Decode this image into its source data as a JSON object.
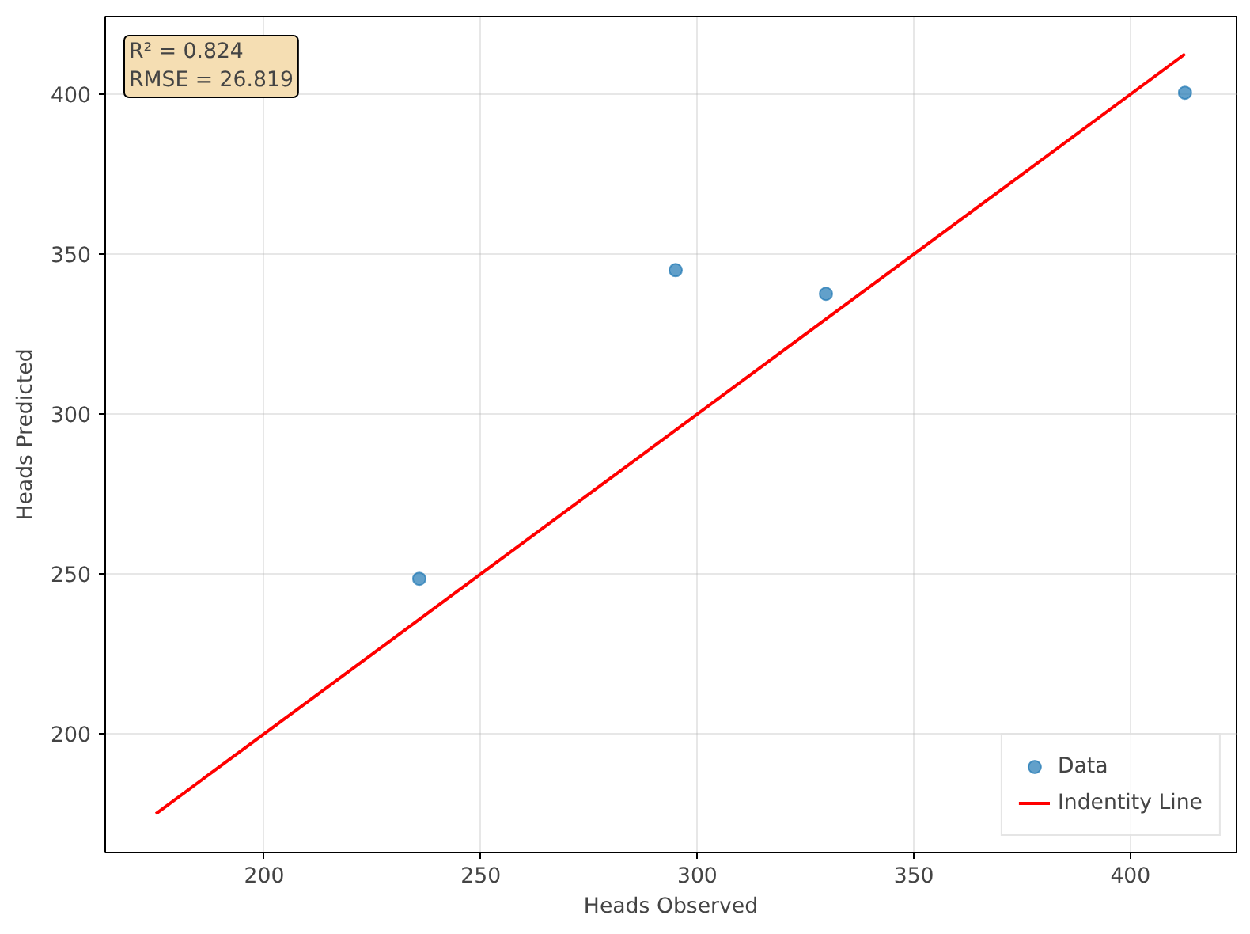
{
  "chart_data": {
    "type": "scatter",
    "xlabel": "Heads Observed",
    "ylabel": "Heads Predicted",
    "annotations": [
      "R² = 0.824\nRMSE = 26.819"
    ],
    "series": [
      {
        "name": "Data",
        "color": "#1f77b4",
        "x": [
          235.8,
          295,
          329.7,
          412.6
        ],
        "values": [
          248.5,
          345,
          337.6,
          400.5
        ],
        "marker": "circle"
      },
      {
        "name": "Indentity Line",
        "type": "line",
        "color": "#ff0000",
        "x": [
          175,
          412.6
        ],
        "values": [
          175,
          412.6
        ],
        "line_style": "solid"
      }
    ],
    "xlim": [
      163.3,
      424.5
    ],
    "ylim": [
      162.9,
      424.3
    ],
    "xticks": [
      200,
      250,
      300,
      350,
      400
    ],
    "yticks": [
      200,
      250,
      300,
      350,
      400
    ],
    "grid": true,
    "legend": "bottom right"
  }
}
